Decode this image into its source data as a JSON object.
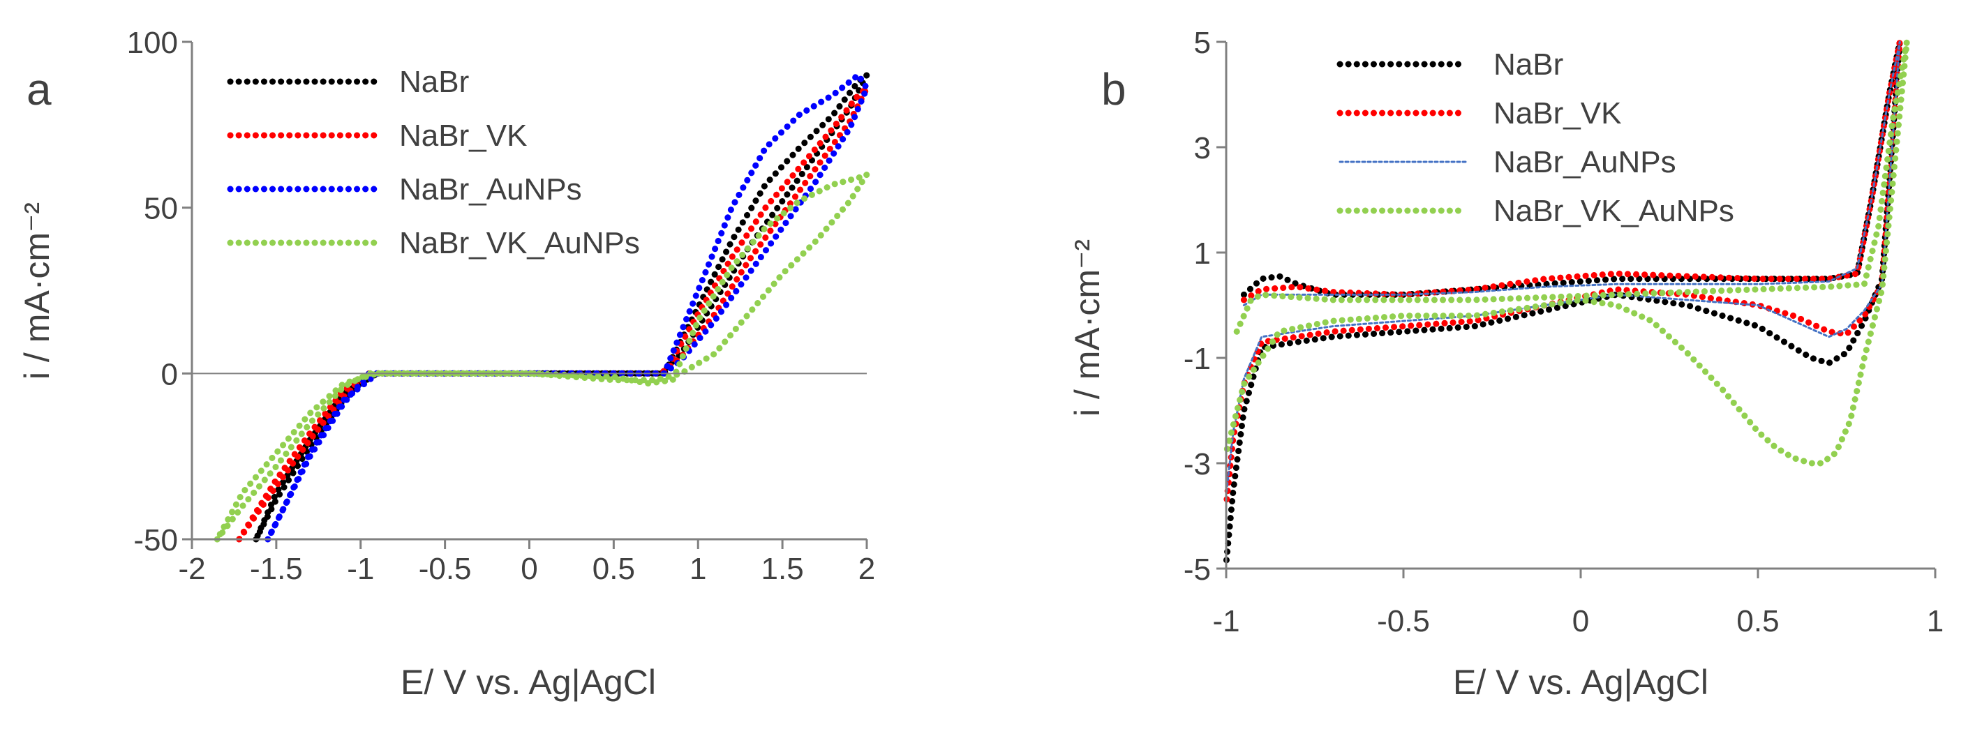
{
  "chart_data": [
    {
      "panel_label": "a",
      "type": "line",
      "xlabel": "E/ V vs. Ag|AgCl",
      "ylabel": "i / mA·cm⁻²",
      "xlim": [
        -2,
        2
      ],
      "ylim": [
        -50,
        100
      ],
      "xticks": [
        -2,
        -1.5,
        -1,
        -0.5,
        0,
        0.5,
        1,
        1.5,
        2
      ],
      "yticks": [
        -50,
        0,
        50,
        100
      ],
      "xtick_labels": [
        "-2",
        "-1.5",
        "-1",
        "-0.5",
        "0",
        "0.5",
        "1",
        "1.5",
        "2"
      ],
      "ytick_labels": [
        "-50",
        "0",
        "50",
        "100"
      ],
      "legend_position": "top-left",
      "series": [
        {
          "name": "NaBr",
          "color": "#000000",
          "x": [
            -1.62,
            -1.5,
            -1.3,
            -1.1,
            -0.95,
            -0.5,
            0,
            0.5,
            0.8,
            1.0,
            1.2,
            1.4,
            1.6,
            1.8,
            1.95,
            2.0,
            1.9,
            1.7,
            1.5,
            1.3,
            1.1,
            0.9,
            0.78,
            0.5,
            0,
            -0.5,
            -0.9,
            -1.1,
            -1.3,
            -1.5,
            -1.62
          ],
          "y": [
            -50,
            -38,
            -22,
            -8,
            0,
            0,
            0,
            0,
            0,
            20,
            40,
            57,
            68,
            78,
            88,
            90,
            80,
            66,
            52,
            38,
            22,
            6,
            0,
            0,
            0,
            0,
            0,
            -6,
            -20,
            -36,
            -50
          ]
        },
        {
          "name": "NaBr_VK",
          "color": "#ff0000",
          "x": [
            -1.72,
            -1.5,
            -1.3,
            -1.1,
            -0.95,
            -0.5,
            0,
            0.5,
            0.8,
            1.0,
            1.2,
            1.4,
            1.6,
            1.8,
            1.95,
            2.0,
            1.9,
            1.7,
            1.5,
            1.3,
            1.1,
            0.9,
            0.78,
            0.5,
            0,
            -0.5,
            -0.9,
            -1.1,
            -1.3,
            -1.5,
            -1.72
          ],
          "y": [
            -50,
            -34,
            -20,
            -7,
            0,
            0,
            0,
            0,
            0,
            18,
            35,
            50,
            62,
            74,
            84,
            86,
            76,
            62,
            48,
            34,
            18,
            5,
            0,
            0,
            0,
            0,
            0,
            -5,
            -18,
            -32,
            -50
          ]
        },
        {
          "name": "NaBr_AuNPs",
          "color": "#0000ff",
          "x": [
            -1.55,
            -1.45,
            -1.3,
            -1.1,
            -0.95,
            -0.5,
            0,
            0.5,
            0.8,
            1.0,
            1.2,
            1.4,
            1.6,
            1.8,
            1.95,
            2.0,
            1.9,
            1.7,
            1.5,
            1.3,
            1.1,
            0.9,
            0.8,
            0.5,
            0,
            -0.5,
            -0.9,
            -1.1,
            -1.3,
            -1.45,
            -1.55
          ],
          "y": [
            -50,
            -40,
            -25,
            -9,
            0,
            0,
            0,
            0,
            0,
            25,
            50,
            68,
            78,
            84,
            90,
            86,
            74,
            58,
            44,
            30,
            16,
            4,
            0,
            0,
            0,
            0,
            0,
            -8,
            -24,
            -40,
            -50
          ]
        },
        {
          "name": "NaBr_VK_AuNPs",
          "color": "#92d050",
          "x": [
            -1.85,
            -1.7,
            -1.5,
            -1.3,
            -1.1,
            -0.95,
            -0.5,
            0,
            0.5,
            0.7,
            0.85,
            1.0,
            1.2,
            1.4,
            1.6,
            1.8,
            1.95,
            2.0,
            1.9,
            1.7,
            1.5,
            1.3,
            1.1,
            0.9,
            0.75,
            0.5,
            0,
            -0.5,
            -0.9,
            -1.1,
            -1.3,
            -1.5,
            -1.7,
            -1.85
          ],
          "y": [
            -50,
            -40,
            -28,
            -15,
            -4,
            0,
            0,
            0,
            -1,
            -3,
            -2,
            16,
            32,
            44,
            52,
            57,
            59,
            60,
            52,
            40,
            30,
            18,
            6,
            0,
            -2,
            -2,
            0,
            0,
            0,
            -3,
            -12,
            -24,
            -36,
            -50
          ]
        }
      ]
    },
    {
      "panel_label": "b",
      "type": "line",
      "xlabel": "E/ V vs. Ag|AgCl",
      "ylabel": "i / mA·cm⁻²",
      "xlim": [
        -1,
        1
      ],
      "ylim": [
        -5,
        5
      ],
      "xticks": [
        -1,
        -0.5,
        0,
        0.5,
        1
      ],
      "yticks": [
        -5,
        -3,
        -1,
        1,
        3,
        5
      ],
      "xtick_labels": [
        "-1",
        "-0.5",
        "0",
        "0.5",
        "1"
      ],
      "ytick_labels": [
        "-5",
        "-3",
        "-1",
        "1",
        "3",
        "5"
      ],
      "legend_position": "top-left",
      "series": [
        {
          "name": "NaBr",
          "color": "#000000",
          "x": [
            -0.95,
            -0.9,
            -0.85,
            -0.8,
            -0.7,
            -0.5,
            -0.3,
            -0.1,
            0.1,
            0.3,
            0.5,
            0.7,
            0.78,
            0.82,
            0.87,
            0.9,
            0.85,
            0.8,
            0.75,
            0.7,
            0.65,
            0.6,
            0.5,
            0.3,
            0.1,
            -0.1,
            -0.3,
            -0.5,
            -0.7,
            -0.9,
            -0.95,
            -0.98,
            -1.0
          ],
          "y": [
            0.2,
            0.5,
            0.55,
            0.4,
            0.2,
            0.2,
            0.3,
            0.4,
            0.5,
            0.5,
            0.5,
            0.5,
            0.6,
            2,
            4,
            5,
            0.5,
            -0.3,
            -0.9,
            -1.1,
            -1.0,
            -0.8,
            -0.4,
            0.0,
            0.2,
            -0.1,
            -0.4,
            -0.5,
            -0.6,
            -0.8,
            -2,
            -3.5,
            -4.9
          ]
        },
        {
          "name": "NaBr_VK",
          "color": "#ff0000",
          "x": [
            -0.95,
            -0.9,
            -0.8,
            -0.7,
            -0.5,
            -0.3,
            -0.1,
            0.1,
            0.3,
            0.5,
            0.7,
            0.78,
            0.82,
            0.87,
            0.9,
            0.85,
            0.8,
            0.75,
            0.7,
            0.6,
            0.5,
            0.3,
            0.1,
            -0.1,
            -0.3,
            -0.5,
            -0.7,
            -0.9,
            -0.95,
            -0.98,
            -1.0
          ],
          "y": [
            0.1,
            0.3,
            0.35,
            0.25,
            0.2,
            0.3,
            0.5,
            0.6,
            0.55,
            0.5,
            0.5,
            0.6,
            2,
            4,
            5,
            0.4,
            -0.2,
            -0.55,
            -0.5,
            -0.2,
            0.0,
            0.2,
            0.3,
            0.0,
            -0.3,
            -0.4,
            -0.5,
            -0.7,
            -1.5,
            -2.5,
            -3.8
          ]
        },
        {
          "name": "NaBr_AuNPs",
          "color": "#4472c4",
          "x": [
            -0.95,
            -0.9,
            -0.8,
            -0.7,
            -0.5,
            -0.3,
            -0.1,
            0.1,
            0.3,
            0.5,
            0.7,
            0.78,
            0.82,
            0.87,
            0.9,
            0.85,
            0.8,
            0.75,
            0.7,
            0.6,
            0.5,
            0.3,
            0.1,
            -0.1,
            -0.3,
            -0.5,
            -0.7,
            -0.9,
            -0.95,
            -0.98,
            -1.0
          ],
          "y": [
            0.0,
            0.2,
            0.2,
            0.2,
            0.2,
            0.25,
            0.35,
            0.4,
            0.4,
            0.4,
            0.45,
            0.7,
            2,
            4,
            5,
            0.4,
            -0.1,
            -0.45,
            -0.6,
            -0.3,
            0.0,
            0.1,
            0.2,
            0.0,
            -0.2,
            -0.3,
            -0.4,
            -0.6,
            -1.4,
            -2.4,
            -3.6
          ]
        },
        {
          "name": "NaBr_VK_AuNPs",
          "color": "#92d050",
          "x": [
            -0.97,
            -0.93,
            -0.9,
            -0.8,
            -0.7,
            -0.5,
            -0.3,
            -0.1,
            0.1,
            0.3,
            0.5,
            0.7,
            0.8,
            0.84,
            0.88,
            0.92,
            0.85,
            0.8,
            0.76,
            0.72,
            0.68,
            0.65,
            0.6,
            0.55,
            0.5,
            0.4,
            0.3,
            0.2,
            0.1,
            0.0,
            -0.1,
            -0.3,
            -0.5,
            -0.7,
            -0.85,
            -0.95,
            -1.0
          ],
          "y": [
            -0.5,
            0.1,
            0.2,
            0.15,
            0.1,
            0.1,
            0.1,
            0.15,
            0.2,
            0.25,
            0.3,
            0.35,
            0.4,
            1.5,
            3.5,
            5,
            0.3,
            -1.0,
            -2.2,
            -2.8,
            -3.0,
            -3.0,
            -2.9,
            -2.7,
            -2.4,
            -1.6,
            -0.9,
            -0.3,
            0.0,
            0.1,
            0.0,
            -0.2,
            -0.2,
            -0.3,
            -0.5,
            -1.5,
            -2.8
          ]
        }
      ]
    }
  ]
}
